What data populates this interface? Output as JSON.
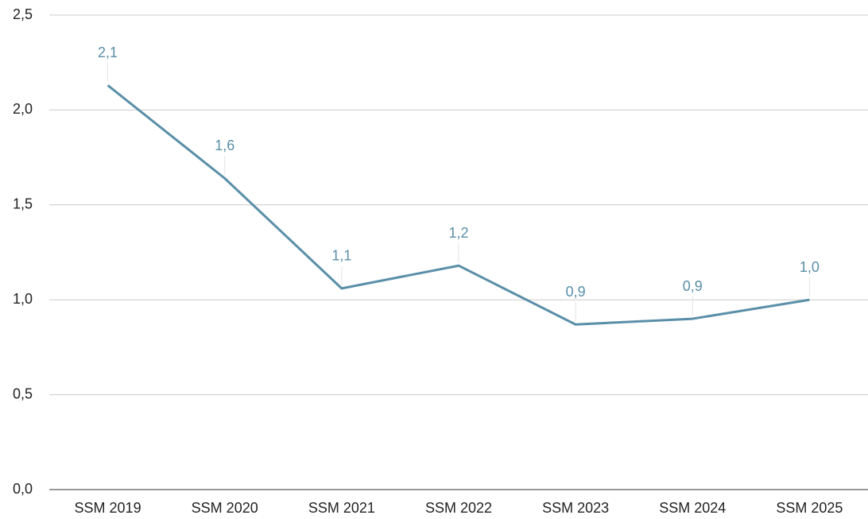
{
  "chart_data": {
    "type": "line",
    "categories": [
      "SSM 2019",
      "SSM 2020",
      "SSM 2021",
      "SSM 2022",
      "SSM 2023",
      "SSM 2024",
      "SSM 2025"
    ],
    "series": [
      {
        "color": "#5a8fa8",
        "values": [
          2.13,
          1.64,
          1.06,
          1.18,
          0.87,
          0.9,
          1.0
        ],
        "value_labels": [
          "2,1",
          "1,6",
          "1,1",
          "1,2",
          "0,9",
          "0,9",
          "1,0"
        ]
      }
    ],
    "ylim": [
      0,
      2.5
    ],
    "yticks": [
      {
        "value": 0,
        "label": "0,0"
      },
      {
        "value": 0.5,
        "label": "0,5"
      },
      {
        "value": 1,
        "label": "1,0"
      },
      {
        "value": 1.5,
        "label": "1,5"
      },
      {
        "value": 2,
        "label": "2,0"
      },
      {
        "value": 2.5,
        "label": "2,5"
      }
    ],
    "grid": true
  }
}
